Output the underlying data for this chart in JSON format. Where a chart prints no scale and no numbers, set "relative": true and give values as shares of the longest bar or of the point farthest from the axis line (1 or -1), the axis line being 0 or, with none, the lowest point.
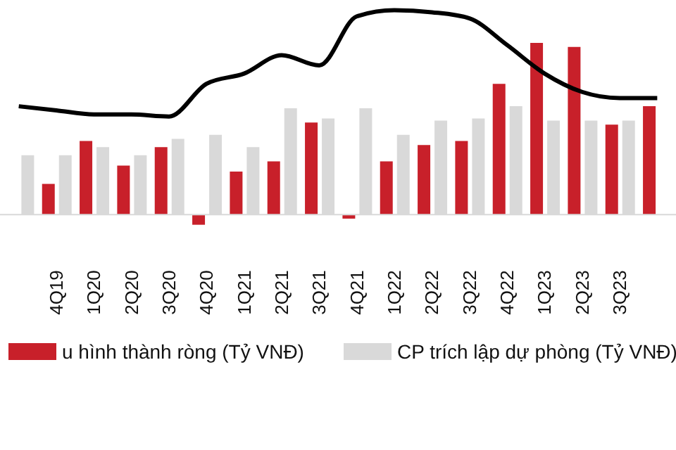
{
  "chart_data": {
    "type": "bar",
    "relative": true,
    "categories": [
      null,
      "4Q19",
      "1Q20",
      "2Q20",
      "3Q20",
      "4Q20",
      "1Q21",
      "2Q21",
      "3Q21",
      "4Q21",
      "1Q22",
      "2Q22",
      "3Q22",
      "4Q22",
      "1Q23",
      "2Q23",
      "3Q23",
      null
    ],
    "series": [
      {
        "name": "u hình thành ròng (Tỷ VNĐ)",
        "color": "#c8202a",
        "values": [
          null,
          0.15,
          0.36,
          0.24,
          0.33,
          -0.05,
          0.21,
          0.26,
          0.45,
          -0.02,
          0.26,
          0.34,
          0.36,
          0.64,
          0.84,
          0.82,
          0.44,
          0.53
        ]
      },
      {
        "name": "CP trích lập dự phòng (Tỷ VNĐ)",
        "color": "#d9d9d9",
        "values": [
          0.29,
          0.29,
          0.33,
          0.29,
          0.37,
          0.39,
          0.33,
          0.52,
          0.47,
          0.52,
          0.39,
          0.46,
          0.47,
          0.53,
          0.46,
          0.46,
          0.46,
          null
        ]
      },
      {
        "type": "line",
        "color": "#000000",
        "values": [
          0.53,
          0.51,
          0.49,
          0.49,
          0.48,
          0.64,
          0.69,
          0.78,
          0.73,
          0.97,
          1,
          0.99,
          0.96,
          0.83,
          0.69,
          0.6,
          0.57,
          0.57
        ]
      }
    ],
    "legend": "bottom",
    "grid": false,
    "marker": "none"
  }
}
